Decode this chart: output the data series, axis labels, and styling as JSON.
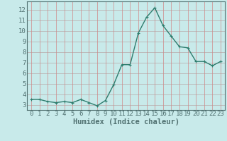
{
  "x": [
    0,
    1,
    2,
    3,
    4,
    5,
    6,
    7,
    8,
    9,
    10,
    11,
    12,
    13,
    14,
    15,
    16,
    17,
    18,
    19,
    20,
    21,
    22,
    23
  ],
  "y": [
    3.5,
    3.5,
    3.3,
    3.2,
    3.3,
    3.2,
    3.5,
    3.2,
    2.9,
    3.4,
    4.9,
    6.8,
    6.8,
    9.8,
    11.3,
    12.2,
    10.5,
    9.5,
    8.5,
    8.4,
    7.1,
    7.1,
    6.7,
    7.1
  ],
  "line_color": "#2e7d6e",
  "marker": "+",
  "marker_size": 3,
  "bg_color": "#c8eaea",
  "grid_color_h": "#b8a8a8",
  "grid_color_v": "#d08888",
  "xlabel": "Humidex (Indice chaleur)",
  "xlabel_fontsize": 7.5,
  "tick_fontsize": 6.5,
  "ylim": [
    2.5,
    12.8
  ],
  "xlim": [
    -0.5,
    23.5
  ],
  "yticks": [
    3,
    4,
    5,
    6,
    7,
    8,
    9,
    10,
    11,
    12
  ],
  "xticks": [
    0,
    1,
    2,
    3,
    4,
    5,
    6,
    7,
    8,
    9,
    10,
    11,
    12,
    13,
    14,
    15,
    16,
    17,
    18,
    19,
    20,
    21,
    22,
    23
  ],
  "line_width": 1.0,
  "spine_color": "#507070"
}
